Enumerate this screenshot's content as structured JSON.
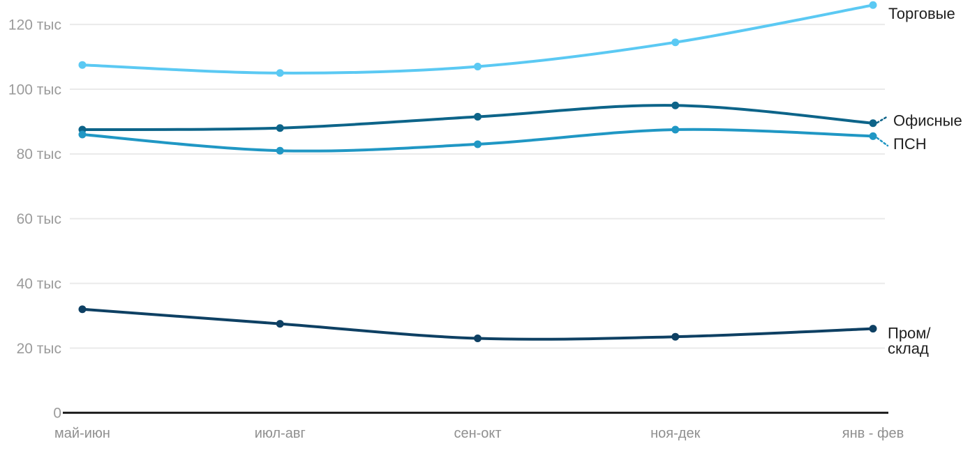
{
  "chart_data": {
    "type": "line",
    "title": "",
    "unit": "тыс",
    "categories": [
      "май-июн",
      "июл-авг",
      "сен-окт",
      "ноя-дек",
      "янв - фев"
    ],
    "y_ticks": [
      {
        "value": 0,
        "label": "0"
      },
      {
        "value": 20,
        "label": "20 тыс"
      },
      {
        "value": 40,
        "label": "40 тыс"
      },
      {
        "value": 60,
        "label": "60 тыс"
      },
      {
        "value": 80,
        "label": "80 тыс"
      },
      {
        "value": 100,
        "label": "100 тыс"
      },
      {
        "value": 120,
        "label": "120 тыс"
      }
    ],
    "ylim": [
      0,
      130
    ],
    "grid": "horizontal-only",
    "legend_position": "end-of-line-labels",
    "series": [
      {
        "name": "Торговые",
        "label_lines": [
          "Торговые"
        ],
        "color": "#5BC9F3",
        "values": [
          107.5,
          105,
          107,
          114.5,
          126
        ]
      },
      {
        "name": "Офисные",
        "label_lines": [
          "Офисные"
        ],
        "color": "#0D6489",
        "values": [
          87.5,
          88,
          91.5,
          95,
          89.5
        ]
      },
      {
        "name": "ПСН",
        "label_lines": [
          "ПСН"
        ],
        "color": "#2097C4",
        "values": [
          86,
          81,
          83,
          87.5,
          85.5
        ]
      },
      {
        "name": "Пром/склад",
        "label_lines": [
          "Пром/",
          "склад"
        ],
        "color": "#0E4063",
        "values": [
          32,
          27.5,
          23,
          23.5,
          26
        ]
      }
    ],
    "colors": {
      "grid": "#eaeaea",
      "axis": "#1a1a1a",
      "tick_text": "#9b9b9b",
      "label_text": "#1f1f1f",
      "background": "#ffffff"
    }
  }
}
